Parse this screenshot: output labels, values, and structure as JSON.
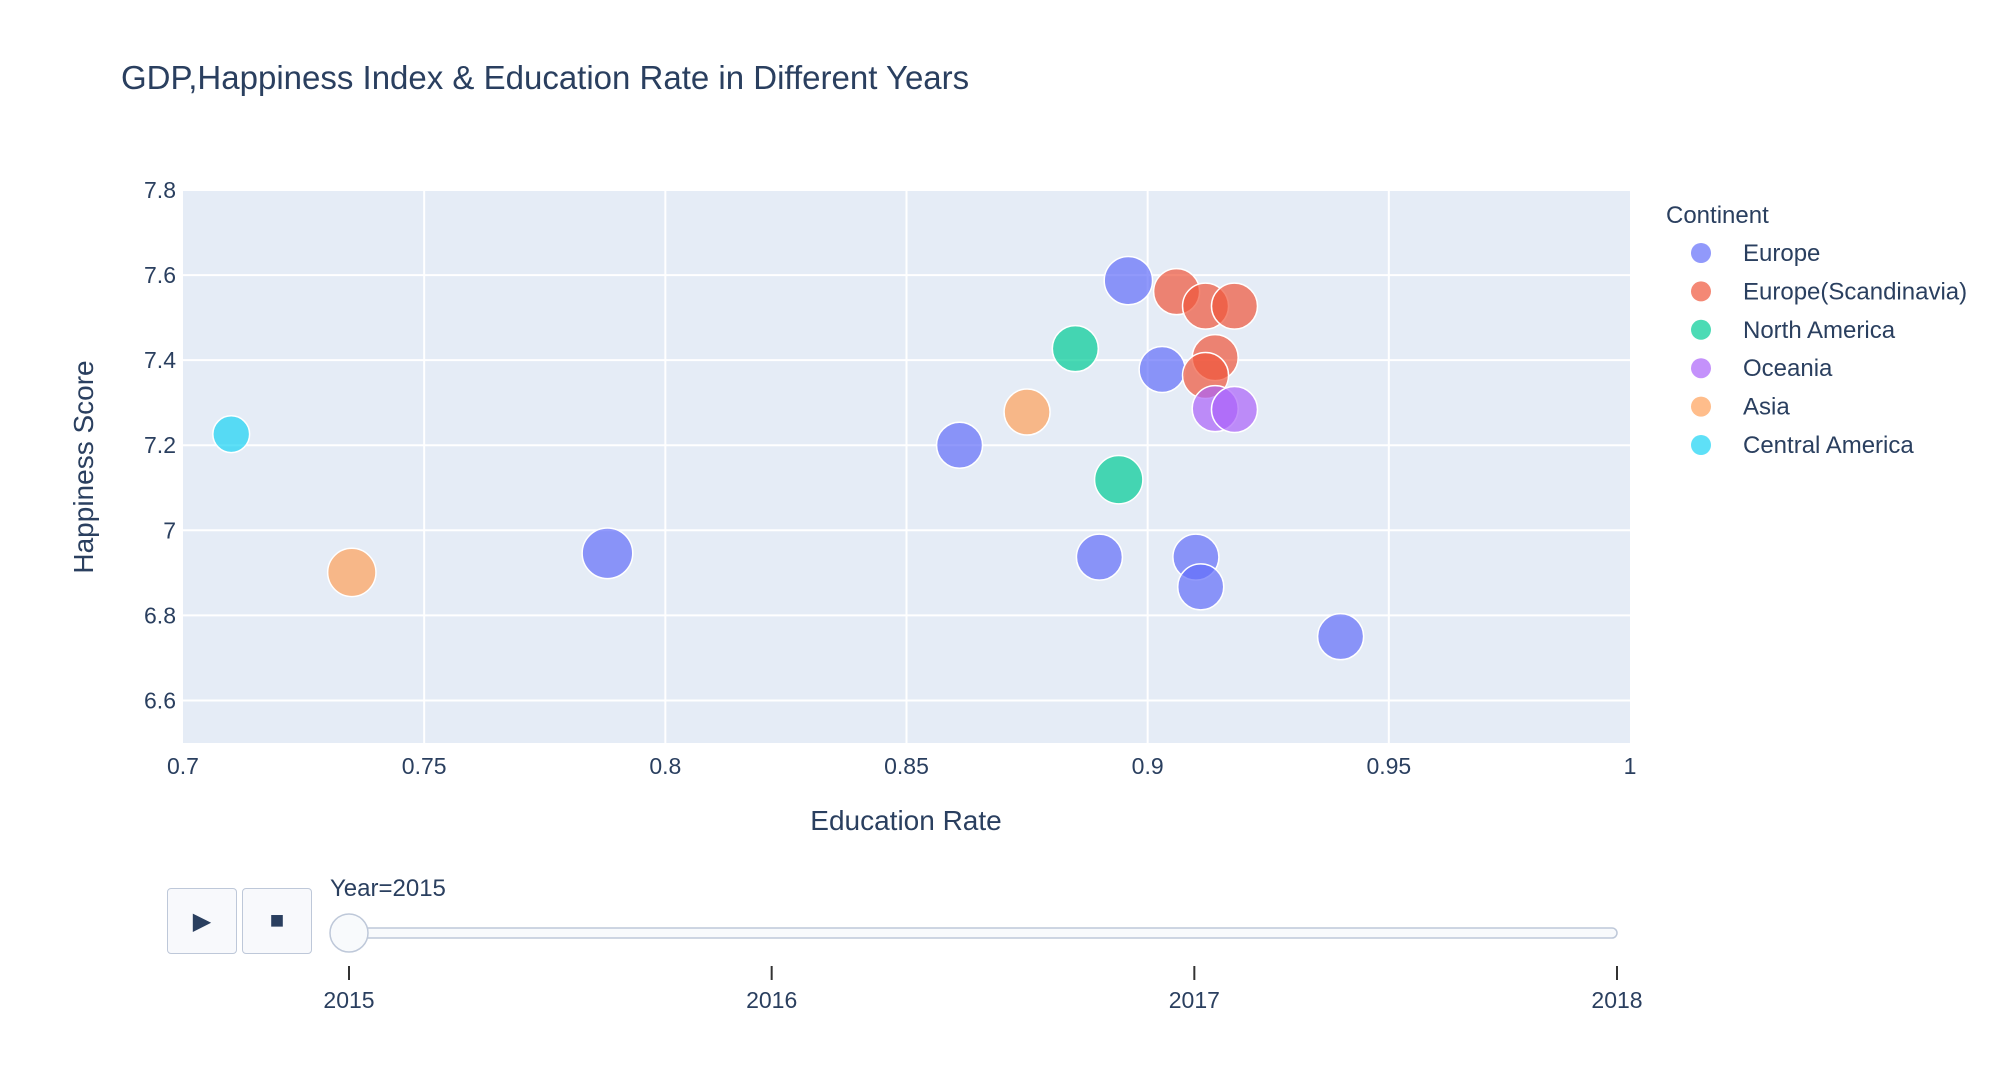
{
  "title": "GDP,Happiness Index & Education Rate in Different Years",
  "chart_data": {
    "type": "scatter",
    "subtype": "bubble",
    "title": "GDP,Happiness Index & Education Rate in Different Years",
    "xlabel": "Education Rate",
    "ylabel": "Happiness Score",
    "xlim": [
      0.7,
      1.0
    ],
    "ylim": [
      6.5,
      7.8
    ],
    "x_ticks": [
      "0.7",
      "0.75",
      "0.8",
      "0.85",
      "0.9",
      "0.95",
      "1"
    ],
    "y_ticks": [
      "6.6",
      "6.8",
      "7",
      "7.2",
      "7.4",
      "7.6",
      "7.8"
    ],
    "grid": true,
    "legend_title": "Continent",
    "legend_position": "right",
    "series": [
      {
        "name": "Europe",
        "color": "#636efa",
        "points": [
          {
            "x": 0.896,
            "y": 7.587,
            "size": 1.05
          },
          {
            "x": 0.903,
            "y": 7.378,
            "size": 1.0
          },
          {
            "x": 0.861,
            "y": 7.2,
            "size": 1.0
          },
          {
            "x": 0.788,
            "y": 6.946,
            "size": 1.1
          },
          {
            "x": 0.89,
            "y": 6.937,
            "size": 1.0
          },
          {
            "x": 0.91,
            "y": 6.937,
            "size": 1.0
          },
          {
            "x": 0.911,
            "y": 6.867,
            "size": 1.0
          },
          {
            "x": 0.94,
            "y": 6.75,
            "size": 1.0
          }
        ]
      },
      {
        "name": "Europe(Scandinavia)",
        "color": "#ef553b",
        "points": [
          {
            "x": 0.906,
            "y": 7.561,
            "size": 1.0
          },
          {
            "x": 0.912,
            "y": 7.527,
            "size": 1.0
          },
          {
            "x": 0.918,
            "y": 7.527,
            "size": 1.0
          },
          {
            "x": 0.914,
            "y": 7.406,
            "size": 1.0
          },
          {
            "x": 0.912,
            "y": 7.364,
            "size": 1.0
          }
        ]
      },
      {
        "name": "North America",
        "color": "#00cc96",
        "points": [
          {
            "x": 0.885,
            "y": 7.427,
            "size": 1.0
          },
          {
            "x": 0.894,
            "y": 7.119,
            "size": 1.05
          }
        ]
      },
      {
        "name": "Oceania",
        "color": "#ab63fa",
        "points": [
          {
            "x": 0.914,
            "y": 7.286,
            "size": 1.0
          },
          {
            "x": 0.918,
            "y": 7.284,
            "size": 1.0
          }
        ]
      },
      {
        "name": "Asia",
        "color": "#ffa15a",
        "points": [
          {
            "x": 0.875,
            "y": 7.278,
            "size": 1.0
          },
          {
            "x": 0.735,
            "y": 6.901,
            "size": 1.05
          }
        ]
      },
      {
        "name": "Central America",
        "color": "#19d3f3",
        "points": [
          {
            "x": 0.71,
            "y": 7.226,
            "size": 0.8
          }
        ]
      }
    ]
  },
  "slider": {
    "current_label": "Year=2015",
    "steps": [
      "2015",
      "2016",
      "2017",
      "2018"
    ],
    "active_index": 0
  },
  "controls": {
    "play_icon": "play-icon",
    "play_glyph": "▶",
    "stop_icon": "stop-icon",
    "stop_glyph": "■"
  }
}
